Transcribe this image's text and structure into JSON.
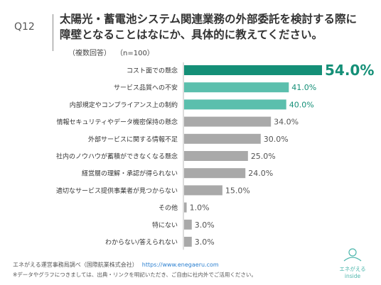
{
  "header": {
    "question_number": "Q12",
    "title_line1": "太陽光・蓄電池システム関連業務の外部委託を検討する際に",
    "title_line2": "障壁となることはなにか、具体的に教えてください。",
    "note_multi": "（複数回答）",
    "note_n": "（n=100）"
  },
  "chart_data": {
    "type": "bar",
    "orientation": "horizontal",
    "categories": [
      "コスト面での懸念",
      "サービス品質への不安",
      "内部規定やコンプライアンス上の制約",
      "情報セキュリティやデータ機密保持の懸念",
      "外部サービスに関する情報不足",
      "社内のノウハウが蓄積ができなくなる懸念",
      "経営層の理解・承認が得られない",
      "適切なサービス提供事業者が見つからない",
      "その他",
      "特にない",
      "わからない/答えられない"
    ],
    "values": [
      54.0,
      41.0,
      40.0,
      34.0,
      30.0,
      25.0,
      24.0,
      15.0,
      1.0,
      3.0,
      3.0
    ],
    "value_labels": [
      "54.0%",
      "41.0%",
      "40.0%",
      "34.0%",
      "30.0%",
      "25.0%",
      "24.0%",
      "15.0%",
      "1.0%",
      "3.0%",
      "3.0%"
    ],
    "highlight_index": 0,
    "bar_colors": [
      "#148f77",
      "#5bbfad",
      "#5bbfad",
      "#a9a9a9",
      "#a9a9a9",
      "#a9a9a9",
      "#a9a9a9",
      "#a9a9a9",
      "#a9a9a9",
      "#a9a9a9",
      "#a9a9a9"
    ],
    "label_colors": [
      "#148f77",
      "#148f77",
      "#148f77",
      "#555555",
      "#555555",
      "#555555",
      "#555555",
      "#555555",
      "#555555",
      "#555555",
      "#555555"
    ],
    "xlim": [
      0,
      54.0
    ],
    "grid": false,
    "legend": "none"
  },
  "footer": {
    "source": "エネがえる運営事務局調べ（国際航業株式会社）",
    "url": "https://www.enegaeru.com",
    "note": "※データやグラフにつきましては、出典・リンクを明記いただき、ご自由に社内外でご活用ください。",
    "logo_text": "エネがえる",
    "logo_sub": "inside"
  }
}
